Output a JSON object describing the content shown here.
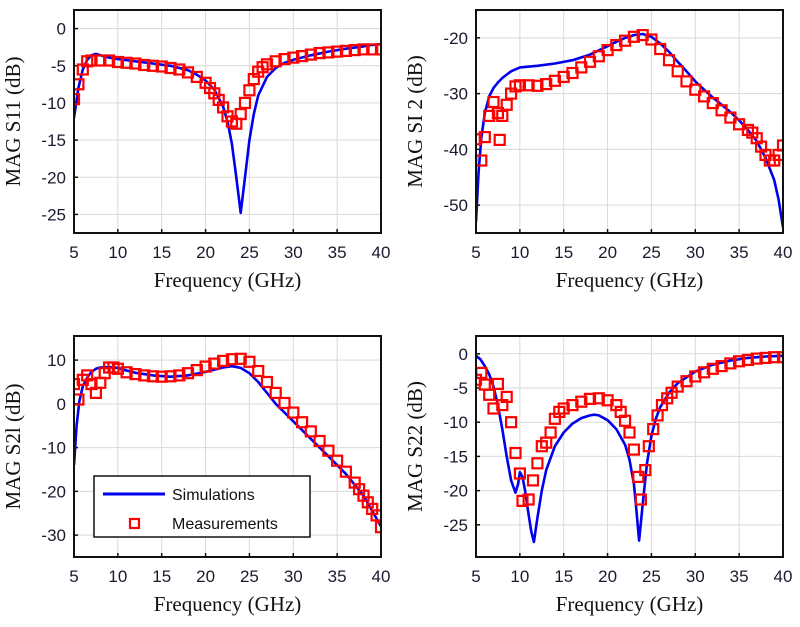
{
  "figure": {
    "colors": {
      "simulation": "#0000ee",
      "measurement": "#ff0000",
      "grid": "#d9d9d9",
      "frame": "#111111"
    }
  },
  "chart_data": [
    {
      "id": "s11",
      "type": "line",
      "title": "",
      "xlabel": "Frequency (GHz)",
      "ylabel": "MAG S11 (dB)",
      "xlim": [
        5,
        40
      ],
      "ylim": [
        -27.5,
        2.5
      ],
      "xticks": [
        5,
        10,
        15,
        20,
        25,
        30,
        35,
        40
      ],
      "yticks": [
        0,
        -5,
        -10,
        -15,
        -20,
        -25
      ],
      "grid": true,
      "series": [
        {
          "name": "Simulations",
          "style": "line",
          "x": [
            5,
            5.5,
            6,
            6.5,
            7,
            7.5,
            8,
            9,
            10,
            12,
            14,
            16,
            18,
            19,
            20,
            21,
            22,
            22.5,
            23,
            23.5,
            24,
            24.5,
            25,
            25.5,
            26,
            27,
            28,
            29,
            30,
            32,
            34,
            36,
            38,
            39,
            40
          ],
          "y": [
            -12,
            -8,
            -5.5,
            -4.2,
            -3.6,
            -3.4,
            -3.6,
            -3.9,
            -4.1,
            -4.4,
            -4.7,
            -5,
            -5.6,
            -6.2,
            -7,
            -8.2,
            -10.5,
            -12.5,
            -15.5,
            -20,
            -24.8,
            -20,
            -15,
            -11.5,
            -9,
            -6.5,
            -5.3,
            -4.6,
            -4.2,
            -3.6,
            -3.1,
            -2.7,
            -2.4,
            -2.2,
            -2.1
          ]
        },
        {
          "name": "Measurements",
          "style": "markers",
          "x": [
            5,
            5.5,
            6,
            6.5,
            7,
            8,
            9,
            10,
            11,
            12,
            13,
            14,
            15,
            16,
            17,
            18,
            19,
            20,
            20.5,
            21,
            21.5,
            22,
            22.5,
            23,
            23.5,
            24,
            24.5,
            25,
            25.5,
            26,
            26.5,
            27,
            28,
            29,
            30,
            31,
            32,
            33,
            34,
            35,
            36,
            37,
            38,
            39,
            40
          ],
          "y": [
            -9.5,
            -7.5,
            -5.5,
            -4.4,
            -4.3,
            -4.3,
            -4.3,
            -4.5,
            -4.6,
            -4.7,
            -4.9,
            -5,
            -5.1,
            -5.3,
            -5.5,
            -5.9,
            -6.5,
            -7.3,
            -8,
            -8.7,
            -9.6,
            -10.6,
            -11.8,
            -12.5,
            -12.8,
            -11.5,
            -10,
            -8.3,
            -6.8,
            -5.8,
            -5.2,
            -4.8,
            -4.4,
            -4.1,
            -3.9,
            -3.7,
            -3.5,
            -3.3,
            -3.2,
            -3.1,
            -3,
            -2.9,
            -2.8,
            -2.8,
            -2.8
          ]
        }
      ]
    },
    {
      "id": "s12",
      "type": "line",
      "title": "",
      "xlabel": "Frequency (GHz)",
      "ylabel": "MAG SI 2 (dB)",
      "xlim": [
        5,
        40
      ],
      "ylim": [
        -55,
        -15
      ],
      "xticks": [
        5,
        10,
        15,
        20,
        25,
        30,
        35,
        40
      ],
      "yticks": [
        -20,
        -30,
        -40,
        -50
      ],
      "grid": true,
      "series": [
        {
          "name": "Simulations",
          "style": "line",
          "x": [
            5,
            5.3,
            5.6,
            6,
            6.5,
            7,
            7.5,
            8,
            9,
            10,
            12,
            14,
            16,
            18,
            20,
            21,
            22,
            23,
            24,
            25,
            26,
            27,
            28,
            29,
            30,
            31,
            32,
            33,
            34,
            35,
            36,
            37,
            38,
            39,
            39.5,
            40
          ],
          "y": [
            -53,
            -44,
            -38,
            -33.5,
            -30.5,
            -29,
            -28,
            -27.2,
            -26,
            -25.3,
            -25,
            -24.6,
            -24,
            -23,
            -21.5,
            -20.7,
            -20,
            -19.5,
            -19.3,
            -19.8,
            -21,
            -22.5,
            -24.3,
            -26,
            -27.8,
            -29.3,
            -30.7,
            -32,
            -33.3,
            -34.8,
            -36.5,
            -38.5,
            -41.5,
            -45.5,
            -49,
            -54
          ]
        },
        {
          "name": "Measurements",
          "style": "markers",
          "x": [
            5,
            5.6,
            6,
            6.5,
            7,
            7.5,
            7.7,
            8,
            8.5,
            9,
            9.5,
            10,
            11,
            12,
            13,
            14,
            15,
            16,
            17,
            18,
            19,
            20,
            21,
            22,
            23,
            24,
            25,
            26,
            27,
            28,
            29,
            30,
            31,
            32,
            33,
            34,
            35,
            36,
            36.5,
            37,
            37.5,
            38,
            38.5,
            39,
            39.5,
            40
          ],
          "y": [
            -38.2,
            -42,
            -37.8,
            -34,
            -31.5,
            -33.5,
            -38.3,
            -34,
            -32,
            -30,
            -28.7,
            -28.5,
            -28.5,
            -28.6,
            -28.3,
            -27.7,
            -27,
            -26.3,
            -25.3,
            -24.3,
            -23.3,
            -22.2,
            -21.3,
            -20.5,
            -19.8,
            -19.5,
            -20.3,
            -22,
            -24,
            -26,
            -27.8,
            -29.3,
            -30.5,
            -31.7,
            -33,
            -34.3,
            -35.5,
            -36.5,
            -37,
            -38,
            -39.5,
            -41,
            -42,
            -42,
            -41,
            -39.3
          ]
        }
      ]
    },
    {
      "id": "s21",
      "type": "line",
      "title": "",
      "xlabel": "Frequency (GHz)",
      "ylabel": "MAG S2l (dB)",
      "xlim": [
        5,
        40
      ],
      "ylim": [
        -35,
        15.5
      ],
      "xticks": [
        5,
        10,
        15,
        20,
        25,
        30,
        35,
        40
      ],
      "yticks": [
        10,
        0,
        -10,
        -20,
        -30
      ],
      "grid": true,
      "legend": {
        "position": "lower-left",
        "entries": [
          {
            "label": "Simulations",
            "style": "line"
          },
          {
            "label": "Measurements",
            "style": "square-marker"
          }
        ]
      },
      "series": [
        {
          "name": "Simulations",
          "style": "line",
          "x": [
            5,
            5.3,
            5.6,
            6,
            6.5,
            7,
            7.5,
            8,
            9,
            10,
            11,
            12,
            14,
            16,
            18,
            20,
            22,
            23,
            24,
            25,
            26,
            27,
            28,
            30,
            32,
            34,
            36,
            37,
            38,
            39,
            40
          ],
          "y": [
            -14,
            -5,
            0.5,
            4,
            6,
            7.3,
            8,
            8.3,
            8.4,
            8.2,
            7.6,
            7.1,
            6.5,
            6.2,
            6.5,
            7.3,
            8.3,
            8.6,
            8.2,
            7,
            5,
            2.5,
            0,
            -4,
            -8,
            -12,
            -16,
            -18.5,
            -21,
            -24.5,
            -28
          ]
        },
        {
          "name": "Measurements",
          "style": "markers",
          "x": [
            5,
            5.5,
            6,
            6.5,
            7,
            7.5,
            8,
            8.5,
            9,
            9.5,
            10,
            11,
            12,
            13,
            14,
            15,
            16,
            17,
            18,
            19,
            20,
            21,
            22,
            23,
            24,
            25,
            26,
            27,
            28,
            29,
            30,
            31,
            32,
            33,
            34,
            35,
            36,
            37,
            37.5,
            38,
            38.5,
            39,
            39.5,
            40
          ],
          "y": [
            4.5,
            1,
            5.5,
            6.5,
            4.5,
            2.5,
            4.8,
            7,
            8.3,
            8.3,
            8,
            7.2,
            6.8,
            6.5,
            6.3,
            6.2,
            6.3,
            6.5,
            7,
            7.7,
            8.5,
            9.2,
            9.8,
            10.2,
            10.3,
            9.6,
            7.5,
            5,
            2.5,
            0.2,
            -2,
            -4.2,
            -6.3,
            -8.5,
            -10.7,
            -13,
            -15.5,
            -18,
            -19.5,
            -21,
            -22.5,
            -24,
            -25.5,
            -28.2
          ]
        }
      ]
    },
    {
      "id": "s22",
      "type": "line",
      "title": "",
      "xlabel": "Frequency (GHz)",
      "ylabel": "MAG S22 (dB)",
      "xlim": [
        5,
        40
      ],
      "ylim": [
        -29.7,
        2.6
      ],
      "xticks": [
        5,
        10,
        15,
        20,
        25,
        30,
        35,
        40
      ],
      "yticks": [
        0,
        -5,
        -10,
        -15,
        -20,
        -25
      ],
      "grid": true,
      "series": [
        {
          "name": "Simulations",
          "style": "line",
          "x": [
            5,
            5.5,
            6,
            6.5,
            7,
            7.5,
            8,
            8.5,
            9,
            9.5,
            9.8,
            10,
            10.3,
            10.6,
            11,
            11.3,
            11.6,
            12,
            12.5,
            13,
            14,
            15,
            16,
            17,
            18,
            18.5,
            19,
            20,
            21,
            22,
            22.5,
            23,
            23.3,
            23.6,
            24,
            24.5,
            25,
            25.5,
            26,
            27,
            28,
            30,
            32,
            34,
            36,
            38,
            40
          ],
          "y": [
            -0.3,
            -0.8,
            -1.8,
            -3,
            -4.8,
            -7.5,
            -11,
            -15,
            -18.5,
            -20.3,
            -19,
            -17.3,
            -18,
            -20,
            -23.5,
            -26,
            -27.5,
            -24,
            -20,
            -17,
            -13.5,
            -11.5,
            -10.2,
            -9.4,
            -9,
            -8.9,
            -9,
            -9.7,
            -11,
            -13.3,
            -15.5,
            -19,
            -23,
            -27.3,
            -22,
            -16,
            -12,
            -9.5,
            -7.8,
            -5.7,
            -4.3,
            -2.6,
            -1.6,
            -1,
            -0.6,
            -0.4,
            -0.3
          ]
        },
        {
          "name": "Measurements",
          "style": "markers",
          "x": [
            5,
            5.6,
            6,
            6.5,
            7,
            7.5,
            8,
            8.5,
            9,
            9.5,
            10,
            10.3,
            11,
            11.5,
            12,
            12.5,
            13,
            13.5,
            14,
            14.5,
            15,
            16,
            17,
            18,
            19,
            20,
            21,
            21.5,
            22,
            22.5,
            23,
            23.5,
            23.8,
            24.3,
            24.7,
            25.2,
            25.7,
            26.2,
            26.8,
            27.3,
            28,
            29,
            30,
            31,
            32,
            33,
            34,
            35,
            36,
            37,
            38,
            39,
            40
          ],
          "y": [
            -3.8,
            -2.8,
            -4.5,
            -6,
            -8,
            -4.4,
            -7.5,
            -6.3,
            -10,
            -14.5,
            -17.5,
            -21.5,
            -21.3,
            -18.5,
            -16,
            -13.5,
            -13,
            -11.5,
            -9.5,
            -8.5,
            -8,
            -7.5,
            -7,
            -6.6,
            -6.5,
            -6.8,
            -7.5,
            -8.5,
            -9.8,
            -11.5,
            -14,
            -18,
            -21.3,
            -17,
            -13.5,
            -11,
            -9,
            -7.5,
            -6.5,
            -5.7,
            -4.8,
            -4,
            -3.3,
            -2.7,
            -2.2,
            -1.8,
            -1.4,
            -1.1,
            -0.9,
            -0.7,
            -0.6,
            -0.5,
            -0.5
          ]
        }
      ]
    }
  ]
}
